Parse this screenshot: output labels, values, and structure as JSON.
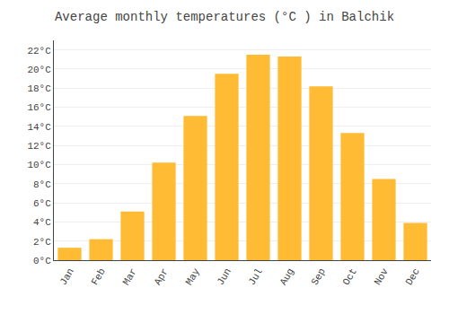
{
  "chart_data": {
    "type": "bar",
    "title": "Average monthly temperatures (°C ) in Balchik",
    "categories": [
      "Jan",
      "Feb",
      "Mar",
      "Apr",
      "May",
      "Jun",
      "Jul",
      "Aug",
      "Sep",
      "Oct",
      "Nov",
      "Dec"
    ],
    "values": [
      1.3,
      2.2,
      5.1,
      10.2,
      15.1,
      19.5,
      21.5,
      21.3,
      18.2,
      13.3,
      8.5,
      3.9
    ],
    "color": "#FFBB33",
    "ylim": [
      0,
      23
    ],
    "yticks": [
      {
        "value": 0,
        "label": "0°C"
      },
      {
        "value": 2,
        "label": "2°C"
      },
      {
        "value": 4,
        "label": "4°C"
      },
      {
        "value": 6,
        "label": "6°C"
      },
      {
        "value": 8,
        "label": "8°C"
      },
      {
        "value": 10,
        "label": "10°C"
      },
      {
        "value": 12,
        "label": "12°C"
      },
      {
        "value": 14,
        "label": "14°C"
      },
      {
        "value": 16,
        "label": "16°C"
      },
      {
        "value": 18,
        "label": "18°C"
      },
      {
        "value": 20,
        "label": "20°C"
      },
      {
        "value": 22,
        "label": "22°C"
      }
    ],
    "grid": true
  }
}
